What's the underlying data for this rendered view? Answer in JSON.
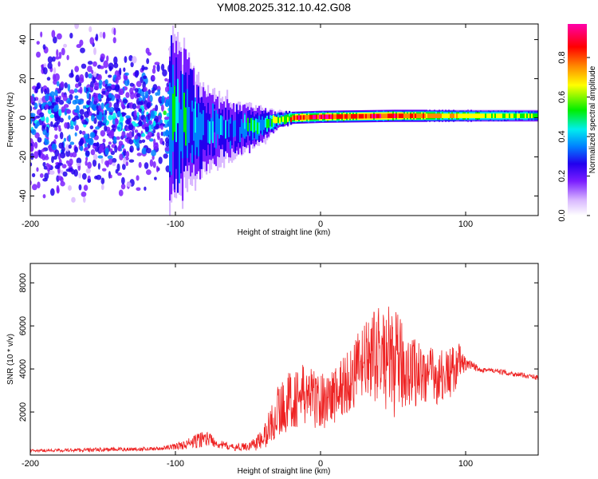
{
  "title": "YM08.2025.312.10.42.G08",
  "colors": {
    "snr_line": "#ee2222",
    "axis": "#000000",
    "background": "#ffffff",
    "colormap": [
      "#ffffff",
      "#d9b8ff",
      "#7a1dff",
      "#2200ee",
      "#0080ff",
      "#00eeee",
      "#00ee00",
      "#ffff00",
      "#ff8800",
      "#ff0000",
      "#ff00aa"
    ]
  },
  "chart_data": [
    {
      "type": "heatmap",
      "name": "spectrogram",
      "xlabel": "Height of straight line (km)",
      "ylabel": "Frequency (Hz)",
      "xlim": [
        -200,
        150
      ],
      "ylim": [
        -50,
        48
      ],
      "xticks": [
        -200,
        -100,
        0,
        100
      ],
      "xtick_labels": [
        "-200",
        "-100",
        "0",
        "100"
      ],
      "yticks": [
        -40,
        -20,
        0,
        20,
        40
      ],
      "ytick_labels": [
        "-40",
        "-20",
        "0",
        "20",
        "40"
      ],
      "colorbar": {
        "label": "Normalized spectral amplitude",
        "range": [
          0,
          0.97
        ],
        "ticks": [
          0,
          0.2,
          0.4,
          0.6,
          0.8
        ],
        "tick_labels": [
          "0.0",
          "0.2",
          "0.4",
          "0.6",
          "0.8"
        ]
      },
      "ridge": [
        {
          "x": -200,
          "freq": 0,
          "peak": 0.35,
          "spread_hz": 45
        },
        {
          "x": -150,
          "freq": 0,
          "peak": 0.38,
          "spread_hz": 45
        },
        {
          "x": -100,
          "freq": 0,
          "peak": 0.45,
          "spread_hz": 30
        },
        {
          "x": -80,
          "freq": -5,
          "peak": 0.35,
          "spread_hz": 15
        },
        {
          "x": -60,
          "freq": -6,
          "peak": 0.35,
          "spread_hz": 10
        },
        {
          "x": -40,
          "freq": -4,
          "peak": 0.45,
          "spread_hz": 6
        },
        {
          "x": -30,
          "freq": -1,
          "peak": 0.55,
          "spread_hz": 3
        },
        {
          "x": -20,
          "freq": 0,
          "peak": 0.8,
          "spread_hz": 2
        },
        {
          "x": 0,
          "freq": 0.5,
          "peak": 0.8,
          "spread_hz": 2
        },
        {
          "x": 50,
          "freq": 1,
          "peak": 0.8,
          "spread_hz": 2
        },
        {
          "x": 100,
          "freq": 1,
          "peak": 0.6,
          "spread_hz": 2
        },
        {
          "x": 150,
          "freq": 1,
          "peak": 0.5,
          "spread_hz": 2
        }
      ]
    },
    {
      "type": "line",
      "name": "snr",
      "xlabel": "Height of straight line (km)",
      "ylabel": "SNR (10 * v/v)",
      "xlim": [
        -200,
        150
      ],
      "ylim": [
        0,
        8900
      ],
      "xticks": [
        -200,
        -100,
        0,
        100
      ],
      "xtick_labels": [
        "-200",
        "-100",
        "0",
        "100"
      ],
      "yticks": [
        2000,
        4000,
        6000,
        8000
      ],
      "ytick_labels": [
        "2000",
        "4000",
        "6000",
        "8000"
      ],
      "series": [
        {
          "name": "SNR",
          "envelope_x": [
            -200,
            -150,
            -110,
            -95,
            -85,
            -80,
            -75,
            -70,
            -60,
            -50,
            -40,
            -35,
            -30,
            -20,
            -10,
            0,
            10,
            20,
            30,
            40,
            50,
            60,
            70,
            80,
            90,
            95,
            100,
            110,
            120,
            130,
            140,
            150
          ],
          "mean": [
            200,
            250,
            300,
            450,
            650,
            800,
            700,
            500,
            350,
            400,
            700,
            1300,
            2000,
            2600,
            2800,
            2500,
            2800,
            3500,
            4300,
            4700,
            4300,
            4000,
            3800,
            3600,
            3800,
            4300,
            4200,
            4000,
            3900,
            3800,
            3700,
            3600
          ],
          "amplitude": [
            60,
            100,
            80,
            200,
            350,
            400,
            300,
            200,
            150,
            200,
            500,
            900,
            1200,
            1400,
            1500,
            1300,
            1400,
            1600,
            1800,
            2200,
            2600,
            1800,
            1500,
            1300,
            1200,
            1000,
            300,
            150,
            120,
            120,
            120,
            120
          ]
        }
      ]
    }
  ]
}
